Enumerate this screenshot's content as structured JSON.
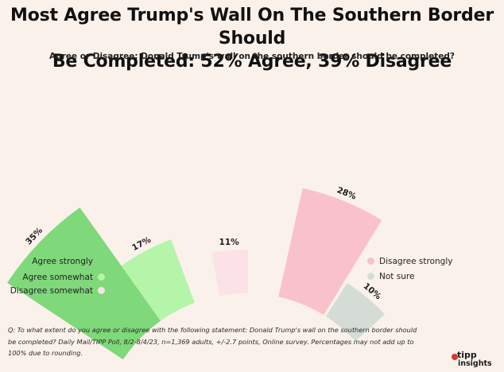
{
  "title_lines": [
    "Most Agree Trump's Wall On The Southern Border Should",
    "Be Completed: 52% Agree, 39% Disagree"
  ],
  "subtitle": "Agree or Disagree: Donald Trump's wall on the southern border should be completed?",
  "chart_data": {
    "type": "radial-bar",
    "unit": "%",
    "categories": [
      "Agree strongly",
      "Agree somewhat",
      "Disagree somewhat",
      "Disagree strongly",
      "Not sure"
    ],
    "values": [
      35,
      17,
      11,
      28,
      10
    ],
    "value_labels": [
      "35%",
      "17%",
      "11%",
      "28%",
      "10%"
    ],
    "colors": [
      "#7fd87a",
      "#b5f5aa",
      "#fbe2e6",
      "#f9c2cb",
      "#d5dcd6"
    ],
    "legend": {
      "left": [
        {
          "label": "Agree strongly",
          "color": "#7fd87a"
        },
        {
          "label": "Agree somewhat",
          "color": "#b5f5aa"
        },
        {
          "label": "Disagree somewhat",
          "color": "#fbe2e6"
        }
      ],
      "right": [
        {
          "label": "Disagree strongly",
          "color": "#f9c2cb"
        },
        {
          "label": "Not sure",
          "color": "#d5dcd6"
        }
      ]
    }
  },
  "footnote": "Q: To what extent do you agree or disagree with the following statement: Donald Trump's wall on the southern border should be completed? Daily Mail/TIPP Poll, 8/2-8/4/23, n=1,369 adults, +/-2.7 points, Online survey.  Percentages may not add up to 100% due to rounding.",
  "logo": {
    "brand": "tipp",
    "brand_sub": "insights",
    "accent_color": "#d9372e"
  }
}
